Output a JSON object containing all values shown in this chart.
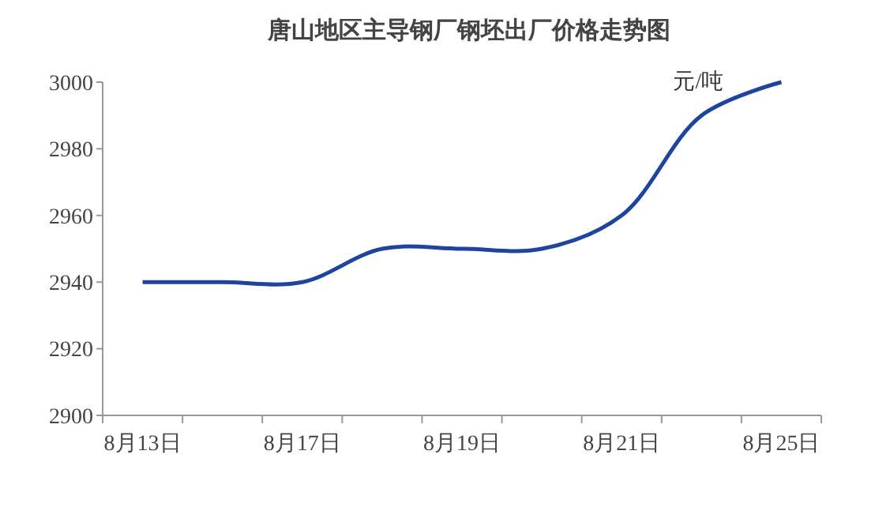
{
  "chart_data": {
    "type": "line",
    "title": "唐山地区主导钢厂钢坯出厂价格走势图",
    "ylabel": "元/吨",
    "categories": [
      "8月13日",
      null,
      "8月17日",
      null,
      "8月19日",
      null,
      "8月21日",
      null,
      "8月25日"
    ],
    "series": [
      {
        "color": "#1e44a0",
        "values": [
          2940,
          2940,
          2940,
          2950,
          2950,
          2950,
          2960,
          2990,
          3000
        ]
      }
    ],
    "ylim": [
      2900,
      3000
    ],
    "yticks": [
      2900,
      2920,
      2940,
      2960,
      2980,
      3000
    ],
    "grid": false,
    "marker": "none",
    "line_style": "solid"
  }
}
